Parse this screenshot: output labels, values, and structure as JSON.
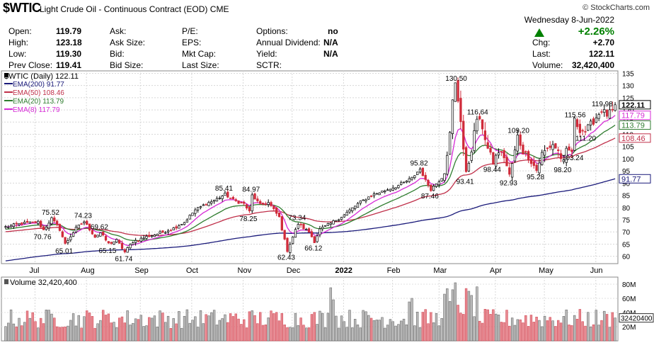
{
  "header": {
    "symbol": "$WTIC",
    "description": "Light Crude Oil - Continuous Contract (EOD)",
    "exchange": "CME",
    "brand": "© StockCharts.com",
    "date": "Wednesday  8-Jun-2022",
    "pct_change": "+2.26%",
    "up_color": "#008000",
    "stats": [
      {
        "label": "Open:",
        "value": "119.79"
      },
      {
        "label": "High:",
        "value": "123.18"
      },
      {
        "label": "Low:",
        "value": "119.30"
      },
      {
        "label": "Prev Close:",
        "value": "119.41"
      },
      {
        "label": "Ask:",
        "value": ""
      },
      {
        "label": "Ask Size:",
        "value": ""
      },
      {
        "label": "Bid:",
        "value": ""
      },
      {
        "label": "Bid Size:",
        "value": ""
      },
      {
        "label": "P/E:",
        "value": ""
      },
      {
        "label": "EPS:",
        "value": ""
      },
      {
        "label": "Mkt Cap:",
        "value": ""
      },
      {
        "label": "Last Size:",
        "value": ""
      },
      {
        "label": "Options:",
        "value": "no"
      },
      {
        "label": "Annual Dividend:",
        "value": "N/A"
      },
      {
        "label": "Yield:",
        "value": "N/A"
      },
      {
        "label": "SCTR:",
        "value": ""
      },
      {
        "label": "Chg:",
        "value": "+2.70"
      },
      {
        "label": "Last:",
        "value": "122.11"
      },
      {
        "label": "Volume:",
        "value": "32,420,400"
      }
    ]
  },
  "chart_data": [
    {
      "type": "candlestick",
      "title": "$WTIC (Daily) 122.11",
      "ylim": [
        57,
        136
      ],
      "y_ticks": [
        60,
        65,
        70,
        75,
        80,
        85,
        90,
        95,
        100,
        105,
        110,
        115,
        120,
        125,
        130,
        135
      ],
      "x_labels": [
        "Jul",
        "Aug",
        "Sep",
        "Oct",
        "Nov",
        "Dec",
        "2022",
        "Feb",
        "Mar",
        "Apr",
        "May",
        "Jun"
      ],
      "legend": [
        {
          "name": "EMA(200) 91.77",
          "color": "#1a1a7a"
        },
        {
          "name": "EMA(50) 108.46",
          "color": "#c0304a"
        },
        {
          "name": "EMA(20) 113.79",
          "color": "#2f7d2f"
        },
        {
          "name": "EMA(8) 117.79",
          "color": "#d62ad6"
        }
      ],
      "price_close_label": "122.11",
      "right_flags": [
        {
          "value": 122.11,
          "text": "122.11",
          "color": "#000000",
          "bg": "#ffffff"
        },
        {
          "value": 117.79,
          "text": "117.79",
          "color": "#d62ad6",
          "bg": "#ffffff"
        },
        {
          "value": 113.79,
          "text": "113.79",
          "color": "#2f7d2f",
          "bg": "#ffffff"
        },
        {
          "value": 108.46,
          "text": "108.46",
          "color": "#c0304a",
          "bg": "#ffffff"
        },
        {
          "value": 91.77,
          "text": "91.77",
          "color": "#1a1a7a",
          "bg": "#ffffff"
        }
      ],
      "annotations": [
        {
          "idx": 17,
          "value": 75.52,
          "pos": "above"
        },
        {
          "idx": 14,
          "value": 70.76,
          "pos": "below"
        },
        {
          "idx": 22,
          "value": 65.01,
          "pos": "below"
        },
        {
          "idx": 29,
          "value": 74.23,
          "pos": "above"
        },
        {
          "idx": 35,
          "value": 69.62,
          "pos": "above"
        },
        {
          "idx": 38,
          "value": 65.15,
          "pos": "below"
        },
        {
          "idx": 44,
          "value": 61.74,
          "pos": "below"
        },
        {
          "idx": 81,
          "value": 85.41,
          "pos": "above"
        },
        {
          "idx": 91,
          "value": 84.97,
          "pos": "above"
        },
        {
          "idx": 90,
          "value": 78.25,
          "pos": "below"
        },
        {
          "idx": 108,
          "value": 73.34,
          "pos": "above"
        },
        {
          "idx": 104,
          "value": 62.43,
          "pos": "below"
        },
        {
          "idx": 114,
          "value": 66.12,
          "pos": "below"
        },
        {
          "idx": 153,
          "value": 95.82,
          "pos": "above"
        },
        {
          "idx": 157,
          "value": 87.46,
          "pos": "below"
        },
        {
          "idx": 166,
          "value": 130.5,
          "pos": "above"
        },
        {
          "idx": 174,
          "value": 116.64,
          "pos": "above"
        },
        {
          "idx": 170,
          "value": 93.41,
          "pos": "below"
        },
        {
          "idx": 180,
          "value": 98.44,
          "pos": "below"
        },
        {
          "idx": 189,
          "value": 109.2,
          "pos": "above"
        },
        {
          "idx": 186,
          "value": 92.93,
          "pos": "below"
        },
        {
          "idx": 196,
          "value": 95.28,
          "pos": "below"
        },
        {
          "idx": 206,
          "value": 98.2,
          "pos": "below"
        },
        {
          "idx": 209,
          "value": 103.24,
          "pos": "below"
        },
        {
          "idx": 210,
          "value": 115.56,
          "pos": "above"
        },
        {
          "idx": 214,
          "value": 111.2,
          "pos": "below"
        },
        {
          "idx": 220,
          "value": 119.98,
          "pos": "above"
        }
      ]
    },
    {
      "type": "bar",
      "title": "Volume 32,420,400",
      "ylim": [
        0,
        90
      ],
      "unit": "M",
      "y_ticks": [
        {
          "v": 80,
          "label": "80M"
        },
        {
          "v": 60,
          "label": "60M"
        },
        {
          "v": 40,
          "label": "40M"
        },
        {
          "v": 20,
          "label": "20M"
        }
      ],
      "last_label": "32420400",
      "last_value": 32.42,
      "colors": {
        "up": "#6a6a6a",
        "down": "#d24b57",
        "up_fill": "#bdbdbd",
        "down_fill": "#e88a92"
      }
    }
  ]
}
